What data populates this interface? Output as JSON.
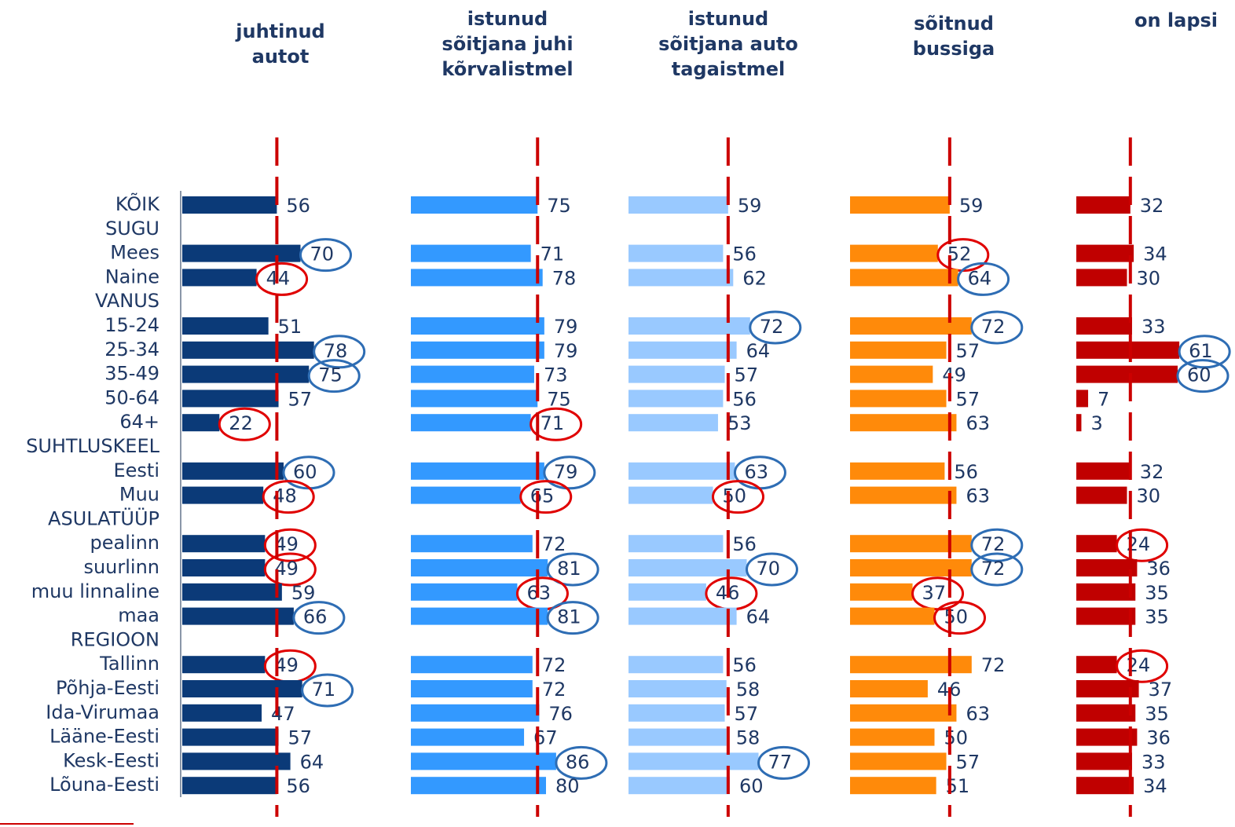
{
  "chart_data": {
    "type": "bar",
    "categories": [
      "KÕIK",
      "SUGU",
      "Mees",
      "Naine",
      "VANUS",
      "15-24",
      "25-34",
      "35-49",
      "50-64",
      "64+",
      "SUHTLUSKEEL",
      "Eesti",
      "Muu",
      "ASULATÜÜP",
      "pealinn",
      "suurlinn",
      "muu linnaline",
      "maa",
      "REGIOON",
      "Tallinn",
      "Põhja-Eesti",
      "Ida-Virumaa",
      "Lääne-Eesti",
      "Kesk-Eesti",
      "Lõuna-Eesti"
    ],
    "series": [
      {
        "name": "juhtinud\nautot",
        "color": "#0b3a78",
        "values": [
          56,
          null,
          70,
          44,
          null,
          51,
          78,
          75,
          57,
          22,
          null,
          60,
          48,
          null,
          49,
          49,
          59,
          66,
          null,
          49,
          71,
          47,
          57,
          64,
          56
        ],
        "circles": [
          null,
          null,
          "blue",
          "red",
          null,
          null,
          "blue",
          "blue",
          null,
          "red",
          null,
          "blue",
          "red",
          null,
          "red",
          "red",
          null,
          "blue",
          null,
          "red",
          "blue",
          null,
          null,
          null,
          null
        ]
      },
      {
        "name": "istunud\nsõitjana juhi\nkõrvalistmel",
        "color": "#3399ff",
        "values": [
          75,
          null,
          71,
          78,
          null,
          79,
          79,
          73,
          75,
          71,
          null,
          79,
          65,
          null,
          72,
          81,
          63,
          81,
          null,
          72,
          72,
          76,
          67,
          86,
          80
        ],
        "circles": [
          null,
          null,
          null,
          null,
          null,
          null,
          null,
          null,
          null,
          "red",
          null,
          "blue",
          "red",
          null,
          null,
          "blue",
          "red",
          "blue",
          null,
          null,
          null,
          null,
          null,
          "blue",
          null
        ]
      },
      {
        "name": "istunud\nsõitjana auto\ntagaistmel",
        "color": "#99c9ff",
        "values": [
          59,
          null,
          56,
          62,
          null,
          72,
          64,
          57,
          56,
          53,
          null,
          63,
          50,
          null,
          56,
          70,
          46,
          64,
          null,
          56,
          58,
          57,
          58,
          77,
          60
        ],
        "circles": [
          null,
          null,
          null,
          null,
          null,
          "blue",
          null,
          null,
          null,
          null,
          null,
          "blue",
          "red",
          null,
          null,
          "blue",
          "red",
          null,
          null,
          null,
          null,
          null,
          null,
          "blue",
          null
        ]
      },
      {
        "name": "sõitnud\nbussiga",
        "color": "#ff8a0a",
        "values": [
          59,
          null,
          52,
          64,
          null,
          72,
          57,
          49,
          57,
          63,
          null,
          56,
          63,
          null,
          72,
          72,
          37,
          50,
          null,
          72,
          46,
          63,
          50,
          57,
          51
        ],
        "circles": [
          null,
          null,
          "red",
          "blue",
          null,
          "blue",
          null,
          null,
          null,
          null,
          null,
          null,
          null,
          null,
          "blue",
          "blue",
          "red",
          "red",
          null,
          null,
          null,
          null,
          null,
          null,
          null
        ]
      },
      {
        "name": "on lapsi",
        "color": "#c00000",
        "values": [
          32,
          null,
          34,
          30,
          null,
          33,
          61,
          60,
          7,
          3,
          null,
          32,
          30,
          null,
          24,
          36,
          35,
          35,
          null,
          24,
          37,
          35,
          36,
          33,
          34
        ],
        "circles": [
          null,
          null,
          null,
          null,
          null,
          null,
          "blue",
          "blue",
          null,
          null,
          null,
          null,
          null,
          null,
          "red",
          null,
          null,
          null,
          null,
          "red",
          null,
          null,
          null,
          null,
          null
        ]
      }
    ],
    "average_line_color": "#cc0000"
  }
}
